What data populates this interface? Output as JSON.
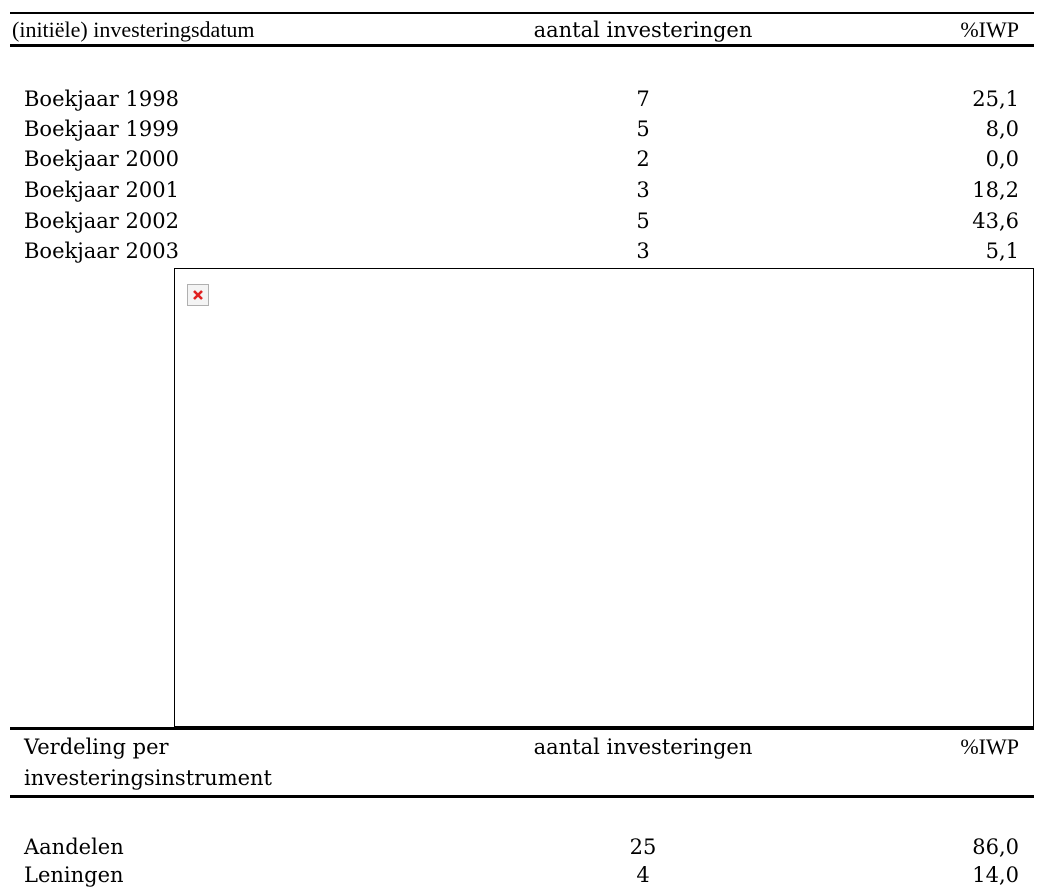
{
  "table1": {
    "headers": [
      "(initiële) investeringsdatum",
      "aantal investeringen",
      "%IWP"
    ],
    "rows": [
      [
        "Boekjaar 1998",
        "7",
        "25,1"
      ],
      [
        "Boekjaar 1999",
        "5",
        "8,0"
      ],
      [
        "Boekjaar 2000",
        "2",
        "0,0"
      ],
      [
        "Boekjaar 2001",
        "3",
        "18,2"
      ],
      [
        "Boekjaar 2002",
        "5",
        "43,6"
      ],
      [
        "Boekjaar 2003",
        "3",
        "5,1"
      ]
    ]
  },
  "image_placeholder": {
    "icon": "broken-image-icon",
    "icon_color": "#e02020"
  },
  "table2": {
    "headers": [
      "Verdeling per",
      "investeringsinstrument",
      "aantal investeringen",
      "%IWP"
    ],
    "rows": [
      [
        "Aandelen",
        "25",
        "86,0"
      ],
      [
        "Leningen",
        "4",
        "14,0"
      ]
    ]
  }
}
